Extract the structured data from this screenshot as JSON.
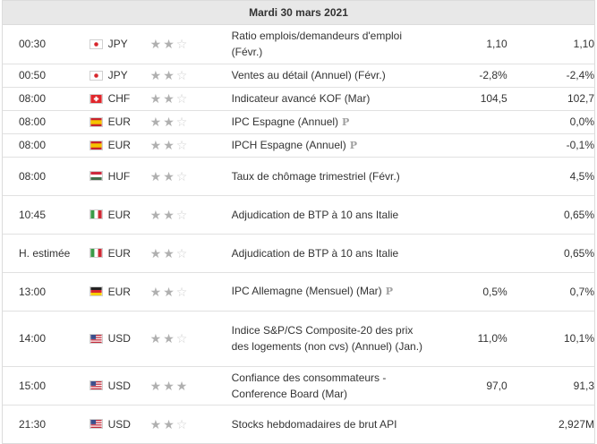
{
  "day_header": "Mardi 30 mars 2021",
  "events": [
    {
      "time": "00:30",
      "currency": "JPY",
      "flag": "japan-flag",
      "stars": 2,
      "event": "Ratio emplois/demandeurs d'emploi (Févr.)",
      "prelim": "",
      "actual": "1,10",
      "forecast": "",
      "previous": "1,10"
    },
    {
      "time": "00:50",
      "currency": "JPY",
      "flag": "japan-flag",
      "stars": 2,
      "event": "Ventes au détail (Annuel) (Févr.)",
      "prelim": "",
      "actual": "-2,8%",
      "forecast": "",
      "previous": "-2,4%"
    },
    {
      "time": "08:00",
      "currency": "CHF",
      "flag": "switzerland-flag",
      "stars": 2,
      "event": "Indicateur avancé KOF (Mar)",
      "prelim": "",
      "actual": "104,5",
      "forecast": "",
      "previous": "102,7"
    },
    {
      "time": "08:00",
      "currency": "EUR",
      "flag": "spain-flag",
      "stars": 2,
      "event": "IPC Espagne (Annuel)",
      "prelim": "P",
      "actual": "",
      "forecast": "",
      "previous": "0,0%"
    },
    {
      "time": "08:00",
      "currency": "EUR",
      "flag": "spain-flag",
      "stars": 2,
      "event": "IPCH Espagne (Annuel)",
      "prelim": "P",
      "actual": "",
      "forecast": "",
      "previous": "-0,1%"
    },
    {
      "time": "08:00",
      "currency": "HUF",
      "flag": "hungary-flag",
      "stars": 2,
      "event": "Taux de chômage trimestriel (Févr.)",
      "prelim": "",
      "actual": "",
      "forecast": "",
      "previous": "4,5%"
    },
    {
      "time": "10:45",
      "currency": "EUR",
      "flag": "italy-flag",
      "stars": 2,
      "event": "Adjudication de BTP à 10 ans Italie",
      "prelim": "",
      "actual": "",
      "forecast": "",
      "previous": "0,65%"
    },
    {
      "time": "H. estimée",
      "currency": "EUR",
      "flag": "italy-flag",
      "stars": 2,
      "event": "Adjudication de BTP à 10 ans Italie",
      "prelim": "",
      "actual": "",
      "forecast": "",
      "previous": "0,65%"
    },
    {
      "time": "13:00",
      "currency": "EUR",
      "flag": "germany-flag",
      "stars": 2,
      "event": "IPC Allemagne (Mensuel) (Mar)",
      "prelim": "P",
      "actual": "0,5%",
      "forecast": "",
      "previous": "0,7%"
    },
    {
      "time": "14:00",
      "currency": "USD",
      "flag": "usa-flag",
      "stars": 2,
      "event": "Indice S&P/CS Composite-20 des prix des logements (non cvs) (Annuel) (Jan.)",
      "prelim": "",
      "actual": "11,0%",
      "forecast": "",
      "previous": "10,1%"
    },
    {
      "time": "15:00",
      "currency": "USD",
      "flag": "usa-flag",
      "stars": 3,
      "event": "Confiance des consommateurs - Conference Board (Mar)",
      "prelim": "",
      "actual": "97,0",
      "forecast": "",
      "previous": "91,3"
    },
    {
      "time": "21:30",
      "currency": "USD",
      "flag": "usa-flag",
      "stars": 2,
      "event": "Stocks hebdomadaires de brut API",
      "prelim": "",
      "actual": "",
      "forecast": "",
      "previous": "2,927M"
    }
  ],
  "colors": {
    "header_bg": "#e8e8e8",
    "star_on": "#b0b0b0",
    "star_off": "#d0d0d0",
    "row_border": "#e1e1e1"
  }
}
